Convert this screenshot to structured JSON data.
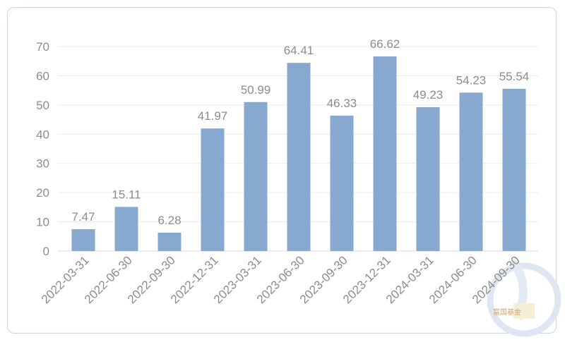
{
  "chart_data": {
    "type": "bar",
    "categories": [
      "2022-03-31",
      "2022-06-30",
      "2022-09-30",
      "2022-12-31",
      "2023-03-31",
      "2023-06-30",
      "2023-09-30",
      "2023-12-31",
      "2024-03-31",
      "2024-06-30",
      "2024-09-30"
    ],
    "values": [
      7.47,
      15.11,
      6.28,
      41.97,
      50.99,
      64.41,
      46.33,
      66.62,
      49.23,
      54.23,
      55.54
    ],
    "value_labels": [
      "7.47",
      "15.11",
      "6.28",
      "41.97",
      "50.99",
      "64.41",
      "46.33",
      "66.62",
      "49.23",
      "54.23",
      "55.54"
    ],
    "ylim": [
      0,
      70
    ],
    "yticks": [
      0,
      10,
      20,
      30,
      40,
      50,
      60,
      70
    ],
    "grid": true,
    "bar_color": "#87a9cf",
    "grid_color": "#e6ebf1"
  },
  "watermark": {
    "text": "富国基金",
    "icon": "fund-logo-icon"
  }
}
